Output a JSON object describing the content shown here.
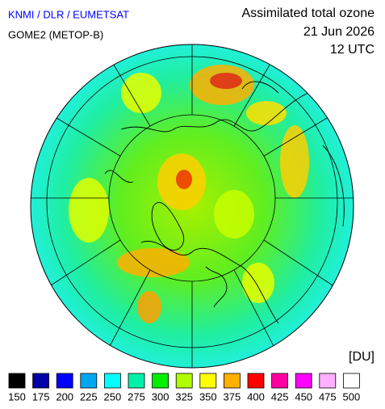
{
  "header": {
    "source": "KNMI / DLR / EUMETSAT",
    "instrument": "GOME2 (METOP-B)",
    "title": "Assimilated total ozone",
    "date": "21 Jun 2026",
    "time": "12 UTC"
  },
  "legend": {
    "unit": "[DU]",
    "items": [
      {
        "value": 150,
        "color": "#000000"
      },
      {
        "value": 175,
        "color": "#0000a8"
      },
      {
        "value": 200,
        "color": "#0000ff"
      },
      {
        "value": 225,
        "color": "#00a8f0"
      },
      {
        "value": 250,
        "color": "#00ffff"
      },
      {
        "value": 275,
        "color": "#00f0a8"
      },
      {
        "value": 300,
        "color": "#00ee00"
      },
      {
        "value": 325,
        "color": "#b0ff00"
      },
      {
        "value": 350,
        "color": "#ffff00"
      },
      {
        "value": 375,
        "color": "#ffb000"
      },
      {
        "value": 400,
        "color": "#ff0000"
      },
      {
        "value": 425,
        "color": "#ff00a0"
      },
      {
        "value": 450,
        "color": "#ff00ff"
      },
      {
        "value": 475,
        "color": "#ffb0ff"
      },
      {
        "value": 500,
        "color": "#ffffff"
      }
    ]
  }
}
